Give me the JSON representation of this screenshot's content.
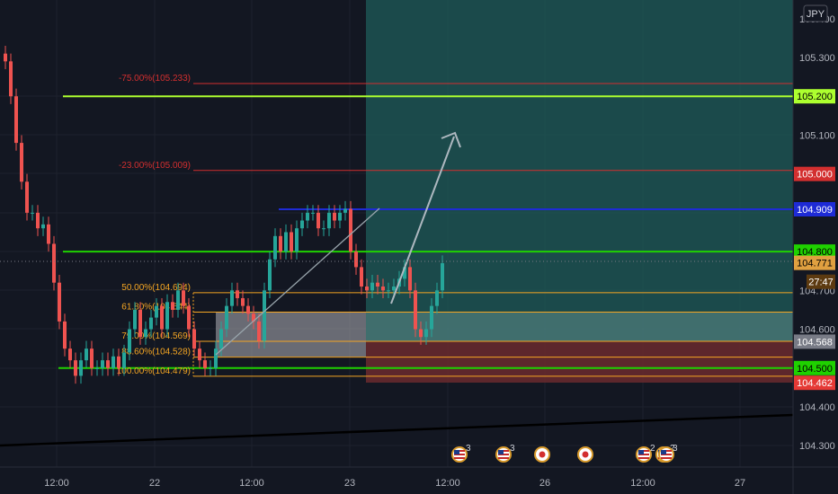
{
  "currency_button": "JPY",
  "price_axis": {
    "ticks": [
      "105.400",
      "105.300",
      "105.200",
      "105.100",
      "105.000",
      "104.909",
      "104.800",
      "104.771",
      "104.700",
      "104.600",
      "104.568",
      "104.500",
      "104.462",
      "104.400",
      "104.300"
    ],
    "badges": [
      {
        "label": "105.200",
        "color": "#adff2f",
        "text_color": "#000000"
      },
      {
        "label": "105.000",
        "color": "#d32f2f",
        "text_color": "#ffffff"
      },
      {
        "label": "104.909",
        "color": "#1e2bd6",
        "text_color": "#ffffff"
      },
      {
        "label": "104.800",
        "color": "#1fd100",
        "text_color": "#000000"
      },
      {
        "label": "104.771",
        "color": "#e0a040",
        "text_color": "#000000"
      },
      {
        "label": "104.568",
        "color": "#787b86",
        "text_color": "#ffffff"
      },
      {
        "label": "104.500",
        "color": "#1fd100",
        "text_color": "#000000"
      },
      {
        "label": "104.462",
        "color": "#e53935",
        "text_color": "#ffffff"
      }
    ],
    "countdown": "27:47"
  },
  "time_axis": [
    "12:00",
    "22",
    "12:00",
    "23",
    "12:00",
    "26",
    "12:00",
    "27"
  ],
  "fib_levels": [
    {
      "label": "-75.00%(105.233)",
      "price": 105.233,
      "color": "#d32f2f"
    },
    {
      "label": "-23.00%(105.009)",
      "price": 105.009,
      "color": "#d32f2f"
    },
    {
      "label": "50.00%(104.694)",
      "price": 104.694,
      "color": "#f5a623"
    },
    {
      "label": "61.80%(104.644)",
      "price": 104.644,
      "color": "#f5a623"
    },
    {
      "label": "79.00%(104.569)",
      "price": 104.569,
      "color": "#f5a623"
    },
    {
      "label": "88.60%(104.528)",
      "price": 104.528,
      "color": "#f5a623"
    },
    {
      "label": "100.00%(104.479)",
      "price": 104.479,
      "color": "#f5a623"
    }
  ],
  "horizontal_lines": [
    {
      "price": 105.2,
      "color": "#adff2f"
    },
    {
      "price": 104.909,
      "color": "#1e2bd6"
    },
    {
      "price": 104.8,
      "color": "#1fd100"
    },
    {
      "price": 104.5,
      "color": "#1fd100"
    }
  ],
  "event_markers": [
    {
      "icon": "us-flag-icon",
      "count": "3"
    },
    {
      "icon": "us-flag-icon",
      "count": "3"
    },
    {
      "icon": "japan-flag-icon",
      "count": ""
    },
    {
      "icon": "japan-flag-icon",
      "count": ""
    },
    {
      "icon": "us-flag-icon",
      "count": "2"
    },
    {
      "icon": "us-flag-icon",
      "count": "2"
    },
    {
      "icon": "us-flag-icon",
      "count": "3"
    }
  ],
  "colors": {
    "background": "#131722",
    "up": "#26a69a",
    "down": "#ef5350",
    "target_zone": "#1f5c5a",
    "stop_zone": "#6b2a2e"
  }
}
